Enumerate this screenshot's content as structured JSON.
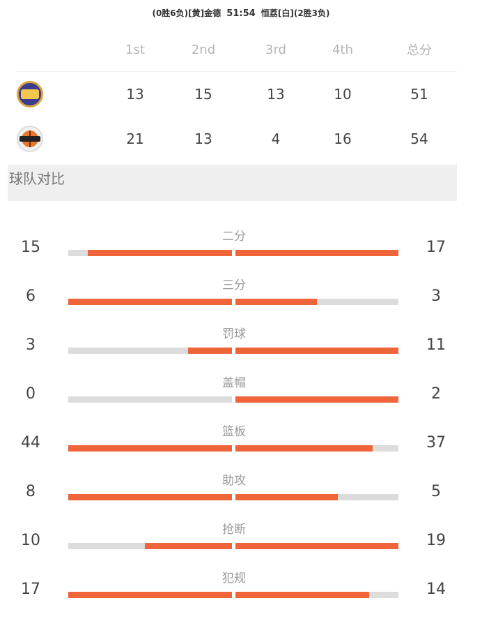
{
  "header": {
    "home_record": "(0胜6负)[黄]金德",
    "score": "51:54",
    "away_record": "恒荔[白](2胜3负)"
  },
  "quarters": {
    "headers": [
      "1st",
      "2nd",
      "3rd",
      "4th",
      "总分"
    ],
    "teams": [
      {
        "logo": "jinde-team-logo",
        "scores": [
          "13",
          "15",
          "13",
          "10",
          "51"
        ]
      },
      {
        "logo": "hengli-team-logo",
        "scores": [
          "21",
          "13",
          "4",
          "16",
          "54"
        ]
      }
    ]
  },
  "section_title": "球队对比",
  "colors": {
    "accent": "#f0643a",
    "track": "#dcdcdc"
  },
  "stats": [
    {
      "label": "二分",
      "left": "15",
      "right": "17",
      "left_frac": 0.88,
      "right_frac": 1.0
    },
    {
      "label": "三分",
      "left": "6",
      "right": "3",
      "left_frac": 1.0,
      "right_frac": 0.5
    },
    {
      "label": "罚球",
      "left": "3",
      "right": "11",
      "left_frac": 0.27,
      "right_frac": 1.0
    },
    {
      "label": "盖帽",
      "left": "0",
      "right": "2",
      "left_frac": 0.0,
      "right_frac": 1.0
    },
    {
      "label": "篮板",
      "left": "44",
      "right": "37",
      "left_frac": 1.0,
      "right_frac": 0.84
    },
    {
      "label": "助攻",
      "left": "8",
      "right": "5",
      "left_frac": 1.0,
      "right_frac": 0.63
    },
    {
      "label": "抢断",
      "left": "10",
      "right": "19",
      "left_frac": 0.53,
      "right_frac": 1.0
    },
    {
      "label": "犯规",
      "left": "17",
      "right": "14",
      "left_frac": 1.0,
      "right_frac": 0.82
    }
  ]
}
